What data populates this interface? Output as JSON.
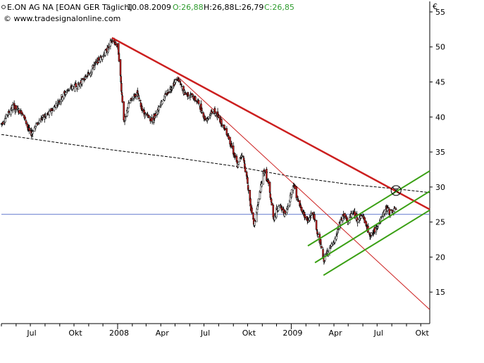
{
  "header": {
    "instrument": "E.ON AG NA [EOAN GER  Täglich]",
    "date": "10.08.2009",
    "ohlc_open": "O:26,88",
    "ohlc_high": "H:26,88",
    "ohlc_low": "L:26,79",
    "ohlc_close": "C:26,85",
    "source": "© www.tradesignalonline.com",
    "currency": "€"
  },
  "colors": {
    "candle_up": "#ffffff",
    "candle_down": "#cc1f1f",
    "candle_outline": "#000000",
    "main_trendline": "#cc1f1f",
    "thin_trendline": "#cc1f1f",
    "channel": "#3aa014",
    "support_line": "#6a7fd0",
    "moving_average": "#000000",
    "ohlc_green": "#2e9c2e"
  },
  "chart_data": {
    "type": "candlestick",
    "x_tick_labels": [
      "Jul",
      "Okt",
      "2008",
      "Apr",
      "Jul",
      "Okt",
      "2009",
      "Apr",
      "Jul",
      "Okt"
    ],
    "y_tick_labels": [
      "15",
      "20",
      "25",
      "30",
      "35",
      "40",
      "45",
      "50",
      "55"
    ],
    "y_ticks": [
      15,
      20,
      25,
      30,
      35,
      40,
      45,
      50,
      55
    ],
    "ylim": [
      10.5,
      56.5
    ],
    "xlim": [
      "2007-05-01",
      "2009-10-20"
    ],
    "grid": false,
    "keypoints": [
      [
        "2007-05-01",
        39.0
      ],
      [
        "2007-05-25",
        41.5
      ],
      [
        "2007-06-15",
        40.5
      ],
      [
        "2007-07-01",
        37.5
      ],
      [
        "2007-07-20",
        39.5
      ],
      [
        "2007-08-10",
        40.5
      ],
      [
        "2007-09-01",
        42.5
      ],
      [
        "2007-09-20",
        44.0
      ],
      [
        "2007-10-10",
        44.5
      ],
      [
        "2007-10-30",
        46.0
      ],
      [
        "2007-11-20",
        48.0
      ],
      [
        "2007-12-10",
        49.5
      ],
      [
        "2007-12-20",
        51.0
      ],
      [
        "2008-01-02",
        50.0
      ],
      [
        "2008-01-09",
        44.0
      ],
      [
        "2008-01-15",
        39.0
      ],
      [
        "2008-01-25",
        42.0
      ],
      [
        "2008-02-10",
        43.5
      ],
      [
        "2008-02-25",
        40.5
      ],
      [
        "2008-03-15",
        39.5
      ],
      [
        "2008-04-01",
        42.0
      ],
      [
        "2008-04-20",
        44.0
      ],
      [
        "2008-05-06",
        45.5
      ],
      [
        "2008-05-20",
        43.5
      ],
      [
        "2008-06-05",
        43.0
      ],
      [
        "2008-06-20",
        42.0
      ],
      [
        "2008-07-05",
        39.5
      ],
      [
        "2008-07-20",
        41.0
      ],
      [
        "2008-08-05",
        39.5
      ],
      [
        "2008-08-20",
        37.5
      ],
      [
        "2008-09-01",
        35.0
      ],
      [
        "2008-09-10",
        33.0
      ],
      [
        "2008-09-20",
        35.0
      ],
      [
        "2008-10-01",
        30.5
      ],
      [
        "2008-10-10",
        26.0
      ],
      [
        "2008-10-15",
        24.5
      ],
      [
        "2008-10-25",
        28.5
      ],
      [
        "2008-11-05",
        32.5
      ],
      [
        "2008-11-15",
        30.0
      ],
      [
        "2008-11-25",
        25.5
      ],
      [
        "2008-12-05",
        27.5
      ],
      [
        "2008-12-20",
        26.0
      ],
      [
        "2009-01-06",
        30.5
      ],
      [
        "2009-01-15",
        28.0
      ],
      [
        "2009-01-25",
        26.5
      ],
      [
        "2009-02-05",
        25.0
      ],
      [
        "2009-02-15",
        26.5
      ],
      [
        "2009-02-25",
        23.5
      ],
      [
        "2009-03-05",
        21.5
      ],
      [
        "2009-03-10",
        19.5
      ],
      [
        "2009-03-20",
        21.0
      ],
      [
        "2009-04-01",
        22.0
      ],
      [
        "2009-04-10",
        24.0
      ],
      [
        "2009-04-20",
        26.0
      ],
      [
        "2009-05-01",
        25.0
      ],
      [
        "2009-05-10",
        26.5
      ],
      [
        "2009-05-20",
        25.5
      ],
      [
        "2009-06-01",
        26.0
      ],
      [
        "2009-06-10",
        24.0
      ],
      [
        "2009-06-20",
        23.0
      ],
      [
        "2009-07-01",
        24.5
      ],
      [
        "2009-07-10",
        25.5
      ],
      [
        "2009-07-20",
        27.0
      ],
      [
        "2009-07-28",
        26.3
      ],
      [
        "2009-08-10",
        26.85
      ]
    ],
    "overlays": {
      "main_trendline": {
        "from": [
          "2007-12-20",
          51.3
        ],
        "to": [
          "2009-10-20",
          26.8
        ]
      },
      "thin_trendline": {
        "from": [
          "2008-05-06",
          45.8
        ],
        "to": [
          "2009-10-20",
          12.5
        ]
      },
      "channel_upper": {
        "from": [
          "2009-02-05",
          21.6
        ],
        "to": [
          "2009-10-20",
          32.3
        ]
      },
      "channel_middle": {
        "from": [
          "2009-02-20",
          19.2
        ],
        "to": [
          "2009-10-20",
          29.4
        ]
      },
      "channel_lower": {
        "from": [
          "2009-03-10",
          17.4
        ],
        "to": [
          "2009-10-20",
          26.7
        ]
      },
      "support_line": {
        "value": 26.1
      },
      "moving_average": [
        [
          "2007-05-01",
          37.5
        ],
        [
          "2007-09-01",
          36.3
        ],
        [
          "2008-01-01",
          35.2
        ],
        [
          "2008-05-01",
          34.2
        ],
        [
          "2008-09-01",
          33.0
        ],
        [
          "2009-01-01",
          31.5
        ],
        [
          "2009-05-01",
          30.4
        ],
        [
          "2009-08-15",
          29.7
        ],
        [
          "2009-10-20",
          29.2
        ]
      ],
      "intersection_marker": [
        "2009-08-10",
        29.5
      ]
    }
  }
}
